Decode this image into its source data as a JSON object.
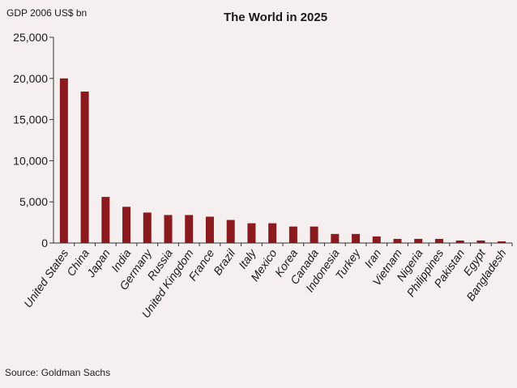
{
  "source": "Source: Goldman Sachs",
  "chart_data": {
    "type": "bar",
    "title": "The World in 2025",
    "ylabel": "GDP 2006 US$ bn",
    "xlabel": "",
    "ylim": [
      0,
      25000
    ],
    "yticks": [
      0,
      5000,
      10000,
      15000,
      20000,
      25000
    ],
    "ytick_labels": [
      "0",
      "5,000",
      "10,000",
      "15,000",
      "20,000",
      "25,000"
    ],
    "grid": false,
    "bar_color": "#8b1a1f",
    "categories": [
      "United States",
      "China",
      "Japan",
      "India",
      "Germany",
      "Russia",
      "United Kingdom",
      "France",
      "Brazil",
      "Italy",
      "Mexico",
      "Korea",
      "Canada",
      "Indonesia",
      "Turkey",
      "Iran",
      "Vietnam",
      "Nigeria",
      "Philippines",
      "Pakistan",
      "Egypt",
      "Bangladesh"
    ],
    "values": [
      20000,
      18400,
      5600,
      4400,
      3700,
      3400,
      3400,
      3200,
      2800,
      2400,
      2400,
      2000,
      2000,
      1100,
      1100,
      800,
      500,
      500,
      500,
      300,
      300,
      200
    ]
  }
}
